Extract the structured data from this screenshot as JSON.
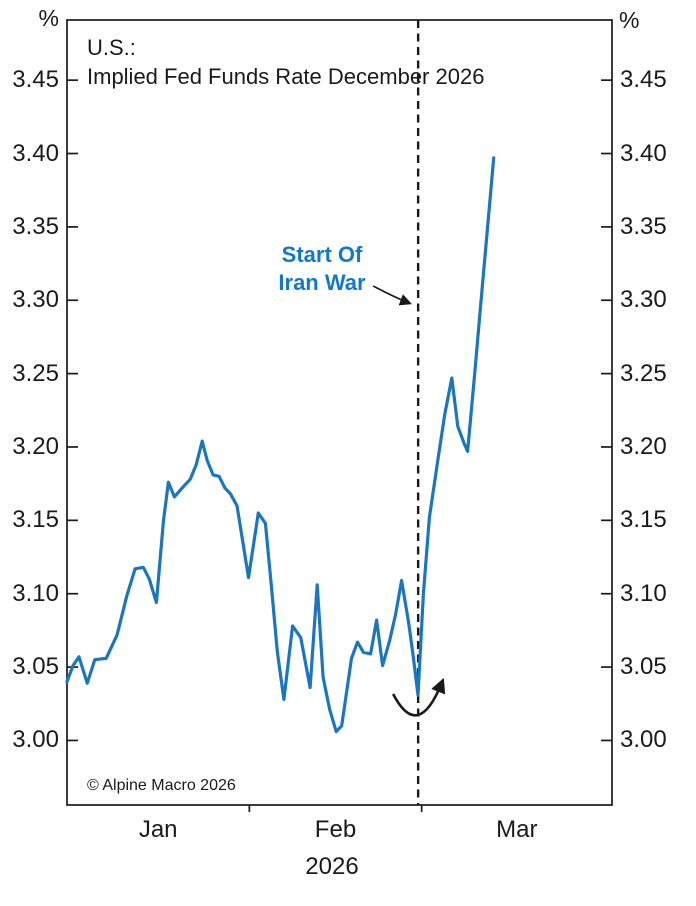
{
  "header": {
    "title_line1": "U.S.:",
    "title_line2": "Implied Fed Funds Rate December 2026"
  },
  "annotation": {
    "line1": "Start Of",
    "line2": "Iran War"
  },
  "footer": {
    "copyright": "© Alpine Macro 2026"
  },
  "colors": {
    "line": "#1C76BE",
    "annotation_text": "#1478C8",
    "axis": "#1a1a1a",
    "dashed_line": "#1a1a1a",
    "background": "#ffffff"
  },
  "chart_data": {
    "type": "line",
    "title": "U.S.: Implied Fed Funds Rate December 2026",
    "unit": "%",
    "grid": false,
    "legend": "none",
    "y_tick_labels": [
      "3.45",
      "3.40",
      "3.35",
      "3.30",
      "3.25",
      "3.20",
      "3.15",
      "3.10",
      "3.05",
      "3.00"
    ],
    "ylim": [
      2.956,
      3.491
    ],
    "year": "2026",
    "x_months": [
      {
        "label": "Jan",
        "start": 0.0,
        "end": 0.3346
      },
      {
        "label": "Feb",
        "start": 0.3346,
        "end": 0.6507
      },
      {
        "label": "Mar",
        "start": 0.6507,
        "end": 1.0
      }
    ],
    "x_boundary_ticks": [
      0.3346,
      0.6507
    ],
    "event_line": {
      "label": "Start Of Iran War",
      "x": 0.6443,
      "date": "Feb 28"
    },
    "series": [
      {
        "name": "Implied Fed Funds Rate December 2026",
        "color": "#1C76BE",
        "point_format": [
          "x_fraction",
          "value_pct",
          "date"
        ],
        "points": [
          [
            0.0,
            3.04,
            "Jan 1"
          ],
          [
            0.011,
            3.051,
            "Jan 2"
          ],
          [
            0.022,
            3.057,
            "Jan 3"
          ],
          [
            0.037,
            3.039,
            "Jan 4"
          ],
          [
            0.051,
            3.055,
            "Jan 6"
          ],
          [
            0.072,
            3.056,
            "Jan 8"
          ],
          [
            0.092,
            3.072,
            "Jan 10"
          ],
          [
            0.11,
            3.099,
            "Jan 11"
          ],
          [
            0.125,
            3.117,
            "Jan 13"
          ],
          [
            0.14,
            3.118,
            "Jan 14"
          ],
          [
            0.151,
            3.11,
            "Jan 15"
          ],
          [
            0.164,
            3.094,
            "Jan 16"
          ],
          [
            0.177,
            3.15,
            "Jan 17"
          ],
          [
            0.186,
            3.176,
            "Jan 18"
          ],
          [
            0.197,
            3.166,
            "Jan 19"
          ],
          [
            0.211,
            3.172,
            "Jan 21"
          ],
          [
            0.226,
            3.178,
            "Jan 22"
          ],
          [
            0.237,
            3.188,
            "Jan 23"
          ],
          [
            0.248,
            3.204,
            "Jan 24"
          ],
          [
            0.257,
            3.191,
            "Jan 25"
          ],
          [
            0.268,
            3.181,
            "Jan 26"
          ],
          [
            0.279,
            3.18,
            "Jan 27"
          ],
          [
            0.29,
            3.172,
            "Jan 28"
          ],
          [
            0.3,
            3.168,
            "Jan 29"
          ],
          [
            0.312,
            3.16,
            "Jan 30"
          ],
          [
            0.324,
            3.132,
            "Jan 31"
          ],
          [
            0.333,
            3.111,
            "Feb 1"
          ],
          [
            0.351,
            3.155,
            "Feb 2"
          ],
          [
            0.364,
            3.148,
            "Feb 3"
          ],
          [
            0.375,
            3.105,
            "Feb 4"
          ],
          [
            0.386,
            3.06,
            "Feb 5"
          ],
          [
            0.398,
            3.028,
            "Feb 6"
          ],
          [
            0.414,
            3.078,
            "Feb 7"
          ],
          [
            0.429,
            3.07,
            "Feb 8"
          ],
          [
            0.446,
            3.036,
            "Feb 9"
          ],
          [
            0.459,
            3.106,
            "Feb 10"
          ],
          [
            0.47,
            3.043,
            "Feb 11"
          ],
          [
            0.482,
            3.021,
            "Feb 12"
          ],
          [
            0.494,
            3.006,
            "Feb 13"
          ],
          [
            0.504,
            3.01,
            "Feb 14"
          ],
          [
            0.522,
            3.056,
            "Feb 16"
          ],
          [
            0.533,
            3.067,
            "Feb 17"
          ],
          [
            0.544,
            3.06,
            "Feb 18"
          ],
          [
            0.557,
            3.059,
            "Feb 19"
          ],
          [
            0.568,
            3.082,
            "Feb 20"
          ],
          [
            0.579,
            3.051,
            "Feb 21"
          ],
          [
            0.592,
            3.068,
            "Feb 22"
          ],
          [
            0.603,
            3.086,
            "Feb 23"
          ],
          [
            0.614,
            3.109,
            "Feb 24"
          ],
          [
            0.627,
            3.08,
            "Feb 25"
          ],
          [
            0.635,
            3.058,
            "Feb 26"
          ],
          [
            0.644,
            3.031,
            "Feb 28"
          ],
          [
            0.654,
            3.1,
            "Mar 1"
          ],
          [
            0.665,
            3.152,
            "Mar 2"
          ],
          [
            0.68,
            3.19,
            "Mar 3"
          ],
          [
            0.693,
            3.222,
            "Mar 4"
          ],
          [
            0.706,
            3.247,
            "Mar 5"
          ],
          [
            0.717,
            3.214,
            "Mar 6"
          ],
          [
            0.728,
            3.203,
            "Mar 7"
          ],
          [
            0.735,
            3.197,
            "Mar 8"
          ],
          [
            0.748,
            3.25,
            "Mar 9"
          ],
          [
            0.759,
            3.297,
            "Mar 10"
          ],
          [
            0.77,
            3.343,
            "Mar 11"
          ],
          [
            0.783,
            3.397,
            "Mar 12"
          ]
        ]
      }
    ]
  }
}
